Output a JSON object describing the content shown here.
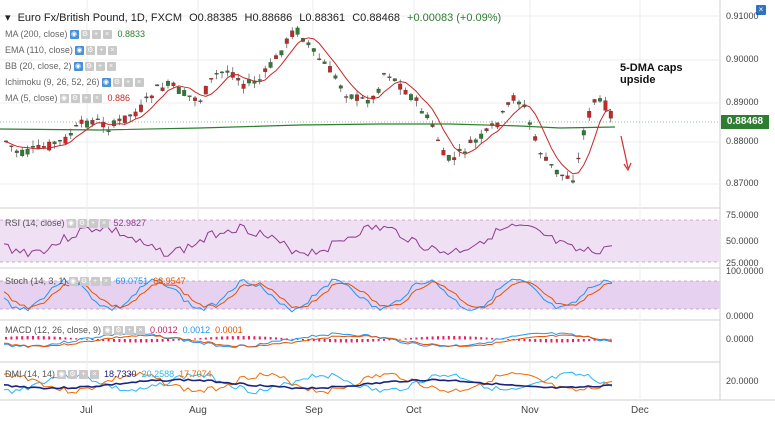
{
  "header": {
    "title": "Euro Fx/British Pound, 1D, FXCM",
    "open": "O0.88385",
    "high": "H0.88686",
    "low": "L0.88361",
    "close": "C0.88468",
    "change": "+0.00083 (+0.09%)"
  },
  "indicators": [
    {
      "label": "MA (200, close)",
      "value": "0.8833"
    },
    {
      "label": "EMA (110, close)",
      "value": ""
    },
    {
      "label": "BB (20, close, 2)",
      "value": ""
    },
    {
      "label": "Ichimoku (9, 26, 52, 26)",
      "value": ""
    },
    {
      "label": "MA (5, close)",
      "value": "0.886"
    }
  ],
  "annotation": {
    "line1": "5-DMA caps",
    "line2": "upside"
  },
  "price_axis": [
    "0.91000",
    "0.90000",
    "0.89000",
    "0.88000",
    "0.87000"
  ],
  "price_tag": "0.88468",
  "panes": {
    "rsi": {
      "label": "RSI (14, close)",
      "value": "52.9827",
      "axis": [
        "75.0000",
        "50.0000",
        "25.0000"
      ]
    },
    "stoch": {
      "label": "Stoch (14, 3, 1)",
      "v1": "69.0751",
      "v2": "68.9547",
      "axis": [
        "100.0000",
        "0.0000"
      ]
    },
    "macd": {
      "label": "MACD (12, 26, close, 9)",
      "v1": "0.0012",
      "v2": "0.0012",
      "v3": "0.0001",
      "axis": [
        "0.0000"
      ]
    },
    "dmi": {
      "label": "DMI (14, 14)",
      "v1": "18.7330",
      "v2": "20.2588",
      "v3": "17.7074",
      "axis": [
        "20.0000"
      ]
    }
  },
  "time_axis": [
    "Jul",
    "Aug",
    "Sep",
    "Oct",
    "Nov",
    "Dec"
  ],
  "colors": {
    "up": "#2e7d32",
    "down": "#c62828",
    "ma200": "#2e7d32",
    "ma5": "#c62828",
    "rsi": "#8e3a8e",
    "band": "#e9d7f0"
  }
}
